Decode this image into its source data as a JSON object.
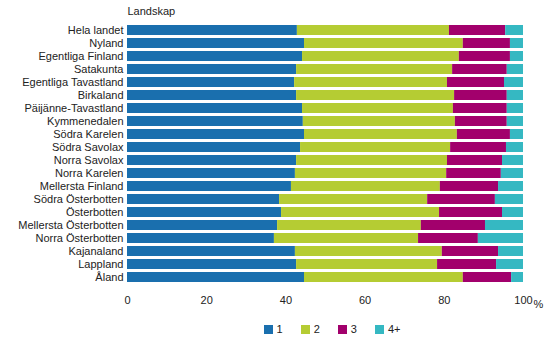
{
  "chart_data": {
    "type": "bar",
    "orientation": "horizontal",
    "stacked": true,
    "grid": false,
    "legend": "bottom",
    "xlabel": "%",
    "ylabel": "Landskap",
    "categories": [
      "Hela landet",
      "Nyland",
      "Egentliga Finland",
      "Satakunta",
      "Egentliga Tavastland",
      "Birkaland",
      "Päijänne-Tavastland",
      "Kymmenedalen",
      "Södra Karelen",
      "Södra Savolax",
      "Norra Savolax",
      "Norra Karelen",
      "Mellersta Finland",
      "Södra Österbotten",
      "Österbotten",
      "Mellersta Österbotten",
      "Norra Österbotten",
      "Kajanaland",
      "Lappland",
      "Åland"
    ],
    "series": [
      {
        "name": "1",
        "color": "#1a6fae",
        "values": [
          42.9,
          44.7,
          44.2,
          42.7,
          42.2,
          42.7,
          44.2,
          44.4,
          44.7,
          43.7,
          42.7,
          42.4,
          41.4,
          38.4,
          38.9,
          37.9,
          37.1,
          42.4,
          42.7,
          44.7
        ]
      },
      {
        "name": "2",
        "color": "#b5cc33",
        "values": [
          38.4,
          40.1,
          39.6,
          39.4,
          38.6,
          39.9,
          38.1,
          38.4,
          38.6,
          37.9,
          38.1,
          38.2,
          37.6,
          37.4,
          39.9,
          36.3,
          36.4,
          37.1,
          35.6,
          40.1
        ]
      },
      {
        "name": "3",
        "color": "#a2006c",
        "values": [
          14.2,
          11.9,
          12.9,
          13.8,
          14.4,
          13.3,
          13.6,
          13.1,
          13.4,
          14.1,
          13.9,
          13.8,
          14.7,
          17.1,
          15.9,
          16.2,
          15.1,
          14.2,
          14.9,
          12.2
        ]
      },
      {
        "name": "4+",
        "color": "#35b8c2",
        "values": [
          4.5,
          3.3,
          3.3,
          4.1,
          4.8,
          4.1,
          4.1,
          4.1,
          3.3,
          4.3,
          5.3,
          5.6,
          6.3,
          7.1,
          5.3,
          9.6,
          11.4,
          6.3,
          6.8,
          3.0
        ]
      }
    ],
    "xlim": [
      0,
      100
    ],
    "xticks": [
      0,
      20,
      40,
      60,
      80,
      100
    ]
  }
}
